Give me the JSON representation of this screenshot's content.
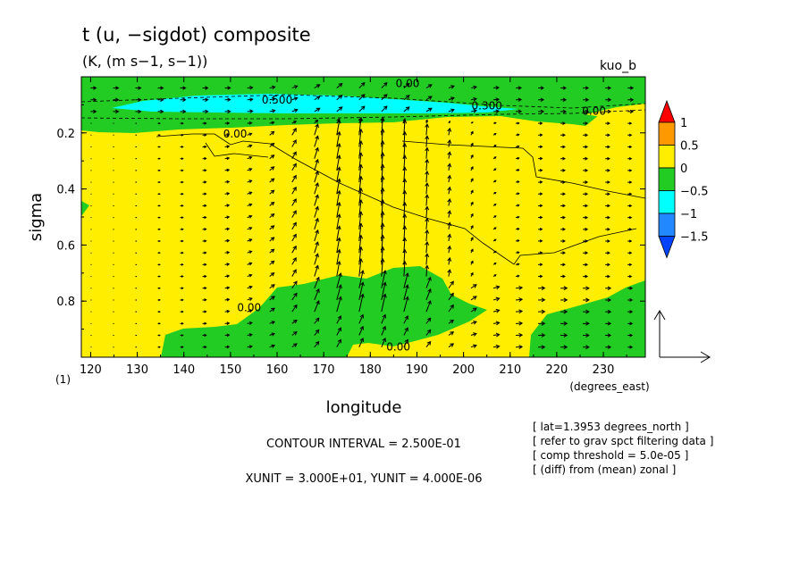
{
  "chart_data": {
    "type": "heatmap",
    "title": "t (u, −sigdot) composite",
    "units": "(K, (m s−1, s−1))",
    "run_label": "kuo_b",
    "xlabel": "longitude",
    "xunits": "(degrees_east)",
    "ylabel": "sigma",
    "ylabel_note": "(1)",
    "xlim": [
      118,
      239
    ],
    "ylim": [
      0.0,
      1.0
    ],
    "y_reversed": true,
    "xticks": [
      "120",
      "130",
      "140",
      "150",
      "160",
      "170",
      "180",
      "190",
      "200",
      "210",
      "220",
      "230"
    ],
    "yticks": [
      "0.2",
      "0.4",
      "0.6",
      "0.8"
    ],
    "colorbar": {
      "levels": [
        "1",
        "0.5",
        "0",
        "−0.5",
        "−1",
        "−1.5"
      ],
      "colors": [
        "#ff0000",
        "#ff9900",
        "#ffee00",
        "#22cc22",
        "#00ffff",
        "#2288ff",
        "#0044ff"
      ]
    },
    "contour_labels": [
      {
        "text": "0.500",
        "lon": 160,
        "sigma": 0.08
      },
      {
        "text": "0.00",
        "lon": 188,
        "sigma": 0.02
      },
      {
        "text": "0.300",
        "lon": 205,
        "sigma": 0.1
      },
      {
        "text": "0.00",
        "lon": 228,
        "sigma": 0.12
      },
      {
        "text": "0.00",
        "lon": 151,
        "sigma": 0.2
      },
      {
        "text": "0.00",
        "lon": 154,
        "sigma": 0.82
      },
      {
        "text": "0.00",
        "lon": 186,
        "sigma": 0.96
      }
    ],
    "contour_interval": "CONTOUR INTERVAL = 2.500E-01",
    "vector_units": "XUNIT = 3.000E+01, YUNIT = 4.000E-06",
    "notes": [
      "[ lat=1.3953 degrees_north ]",
      "[ refer to grav spct filtering data ]",
      "[ comp threshold = 5.0e-05 ]",
      "[ (diff) from (mean) zonal ]"
    ]
  }
}
